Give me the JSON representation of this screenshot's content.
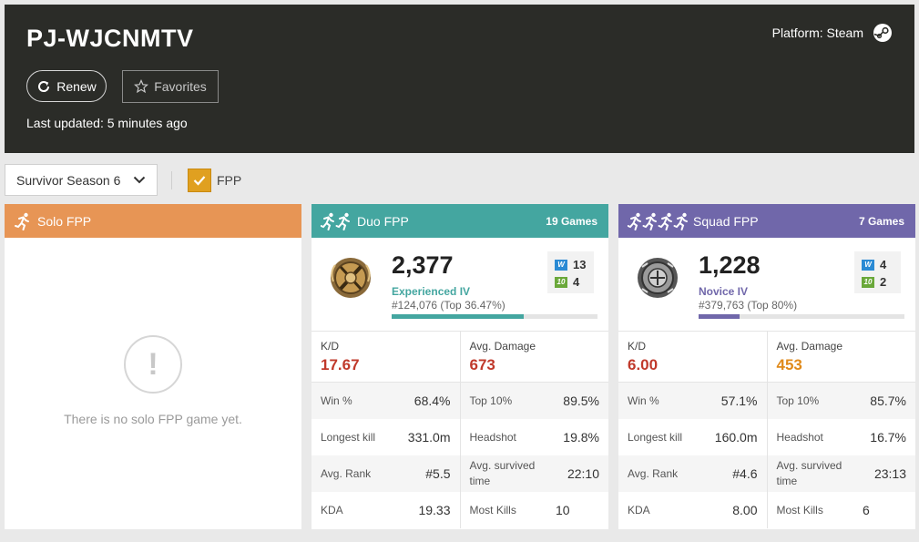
{
  "header": {
    "player_name": "PJ-WJCNMTV",
    "platform_label": "Platform: Steam",
    "renew_label": "Renew",
    "favorites_label": "Favorites",
    "last_updated": "Last updated: 5 minutes ago"
  },
  "filters": {
    "season": "Survivor Season 6",
    "fpp_label": "FPP",
    "fpp_checked": true
  },
  "colors": {
    "solo": "#e79555",
    "duo": "#44a6a0",
    "squad": "#7067aa",
    "kd": "#c0392b",
    "damage_duo": "#c0392b",
    "damage_squad": "#e08a1a",
    "wins_icon": "#2a8ad4",
    "top10_icon": "#6aa83a"
  },
  "solo": {
    "title": "Solo FPP",
    "empty_text": "There is no solo FPP game yet."
  },
  "duo": {
    "title": "Duo FPP",
    "games": "19 Games",
    "rating": "2,377",
    "tier": "Experienced IV",
    "rank": "#124,076 (Top 36.47%)",
    "progress": 0.64,
    "wins_label": "W",
    "wins": "13",
    "top10_label": "10",
    "top10": "4",
    "kd_label": "K/D",
    "kd": "17.67",
    "dmg_label": "Avg. Damage",
    "dmg": "673",
    "stats": [
      {
        "l1": "Win %",
        "v1": "68.4%",
        "l2": "Top 10%",
        "v2": "89.5%"
      },
      {
        "l1": "Longest kill",
        "v1": "331.0m",
        "l2": "Headshot",
        "v2": "19.8%"
      },
      {
        "l1": "Avg. Rank",
        "v1": "#5.5",
        "l2": "Avg. survived time",
        "v2": "22:10"
      },
      {
        "l1": "KDA",
        "v1": "19.33",
        "l2": "Most Kills",
        "v2": "10"
      }
    ]
  },
  "squad": {
    "title": "Squad FPP",
    "games": "7 Games",
    "rating": "1,228",
    "tier": "Novice IV",
    "rank": "#379,763 (Top 80%)",
    "progress": 0.2,
    "wins_label": "W",
    "wins": "4",
    "top10_label": "10",
    "top10": "2",
    "kd_label": "K/D",
    "kd": "6.00",
    "dmg_label": "Avg. Damage",
    "dmg": "453",
    "stats": [
      {
        "l1": "Win %",
        "v1": "57.1%",
        "l2": "Top 10%",
        "v2": "85.7%"
      },
      {
        "l1": "Longest kill",
        "v1": "160.0m",
        "l2": "Headshot",
        "v2": "16.7%"
      },
      {
        "l1": "Avg. Rank",
        "v1": "#4.6",
        "l2": "Avg. survived time",
        "v2": "23:13"
      },
      {
        "l1": "KDA",
        "v1": "8.00",
        "l2": "Most Kills",
        "v2": "6"
      }
    ]
  }
}
